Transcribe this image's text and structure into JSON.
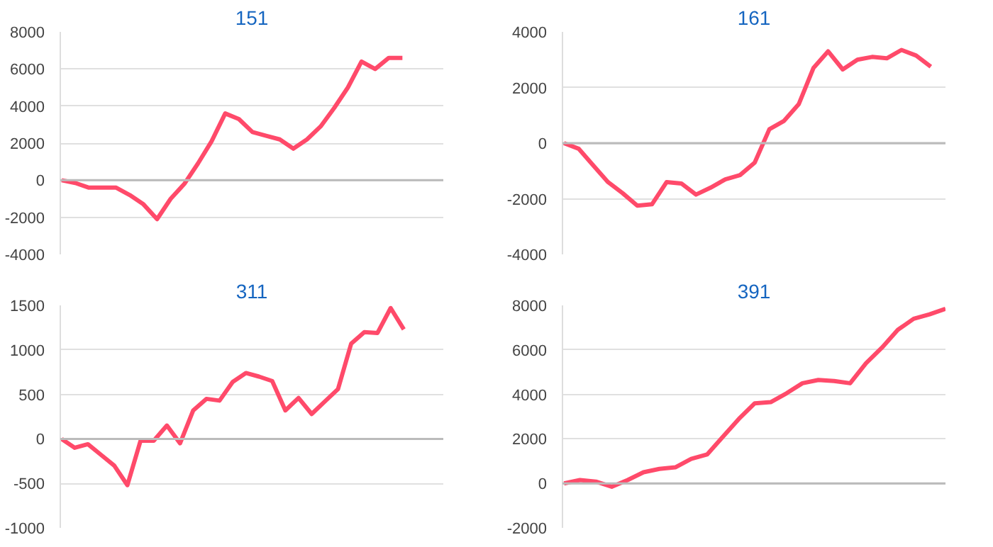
{
  "chart_data": [
    {
      "type": "line",
      "title": "151",
      "categories": [
        null,
        null,
        null,
        null,
        null,
        null,
        null,
        null,
        null,
        null,
        null,
        null,
        null,
        null,
        null,
        null,
        null,
        null,
        null,
        null,
        null,
        null,
        null,
        null,
        null,
        null,
        null,
        null,
        null
      ],
      "tick_labels": "y",
      "grid": "y",
      "ylim": [
        -4000,
        8000
      ],
      "yticks": [
        -4000,
        -2000,
        0,
        2000,
        4000,
        6000,
        8000
      ],
      "series": [
        {
          "color": "#ff4a6a",
          "values": [
            0,
            -150,
            -400,
            -400,
            -400,
            -800,
            -1300,
            -2100,
            -1000,
            -200,
            900,
            2100,
            3600,
            3300,
            2600,
            2400,
            2200,
            1700,
            2200,
            2900,
            3900,
            5000,
            6400,
            6000,
            6600,
            6600,
            null,
            null,
            null
          ]
        }
      ]
    },
    {
      "type": "line",
      "title": "161",
      "categories": [
        null,
        null,
        null,
        null,
        null,
        null,
        null,
        null,
        null,
        null,
        null,
        null,
        null,
        null,
        null,
        null,
        null,
        null,
        null,
        null,
        null,
        null,
        null,
        null,
        null,
        null,
        null
      ],
      "tick_labels": "y",
      "grid": "y",
      "ylim": [
        -4000,
        4000
      ],
      "yticks": [
        -4000,
        -2000,
        0,
        2000,
        4000
      ],
      "series": [
        {
          "color": "#ff4a6a",
          "values": [
            0,
            -200,
            -800,
            -1400,
            -1800,
            -2250,
            -2200,
            -1400,
            -1450,
            -1850,
            -1600,
            -1300,
            -1150,
            -700,
            500,
            800,
            1400,
            2700,
            3300,
            2650,
            3000,
            3100,
            3050,
            3350,
            3150,
            2750,
            null
          ]
        }
      ]
    },
    {
      "type": "line",
      "title": "311",
      "categories": [
        null,
        null,
        null,
        null,
        null,
        null,
        null,
        null,
        null,
        null,
        null,
        null,
        null,
        null,
        null,
        null,
        null,
        null,
        null,
        null,
        null,
        null,
        null,
        null,
        null,
        null,
        null,
        null,
        null,
        null
      ],
      "tick_labels": "y",
      "grid": "y",
      "ylim": [
        -1000,
        1500
      ],
      "yticks": [
        -1000,
        -500,
        0,
        500,
        1000,
        1500
      ],
      "series": [
        {
          "color": "#ff4a6a",
          "values": [
            0,
            -100,
            -60,
            -180,
            -300,
            -520,
            -20,
            -20,
            150,
            -50,
            320,
            450,
            430,
            640,
            740,
            700,
            650,
            320,
            460,
            280,
            420,
            560,
            1070,
            1200,
            1190,
            1470,
            1230,
            null,
            null,
            null
          ]
        }
      ]
    },
    {
      "type": "line",
      "title": "391",
      "categories": [
        null,
        null,
        null,
        null,
        null,
        null,
        null,
        null,
        null,
        null,
        null,
        null,
        null,
        null,
        null,
        null,
        null,
        null,
        null,
        null,
        null,
        null,
        null,
        null,
        null
      ],
      "tick_labels": "y",
      "grid": "y",
      "ylim": [
        -2000,
        8000
      ],
      "yticks": [
        -2000,
        0,
        2000,
        4000,
        6000,
        8000
      ],
      "series": [
        {
          "color": "#ff4a6a",
          "values": [
            0,
            150,
            80,
            -150,
            150,
            500,
            650,
            720,
            1100,
            1300,
            2100,
            2900,
            3600,
            3650,
            4050,
            4500,
            4650,
            4600,
            4500,
            5400,
            6100,
            6900,
            7400,
            7600,
            7850
          ]
        }
      ]
    }
  ]
}
